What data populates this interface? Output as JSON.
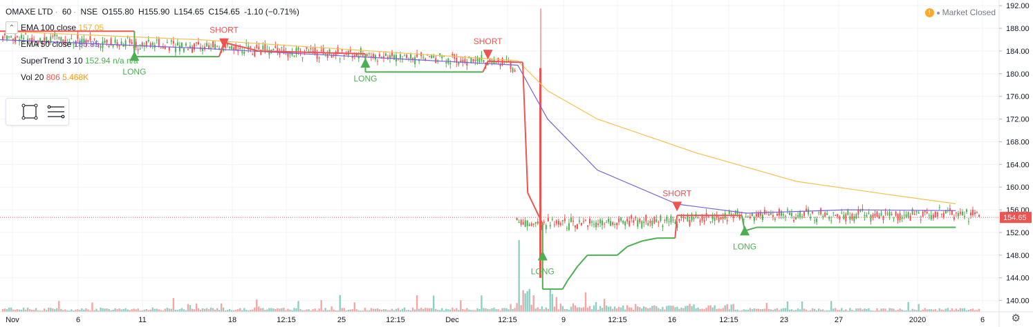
{
  "header": {
    "symbol": "OMAXE LTD",
    "interval": "60",
    "exchange": "NSE",
    "open": "O155.80",
    "high": "H155.90",
    "low": "L154.65",
    "close": "C154.65",
    "change": "-1.10 (−0.71%)"
  },
  "legend": [
    {
      "name": "EMA 100 close",
      "value": "157.05",
      "color": "#ecb22e"
    },
    {
      "name": "EMA 50 close",
      "value": "155.85",
      "color": "#7b61d6"
    },
    {
      "name": "SuperTrend 3 10",
      "value": "152.94",
      "extra": "n/a n/a",
      "color": "#4caf50"
    },
    {
      "name": "Vol 20",
      "value": "806",
      "extra": "5.468K",
      "color": "#ef5350",
      "extra_color": "#ff9800"
    }
  ],
  "market_status": "Market Closed",
  "colors": {
    "up": "#4caf50",
    "down": "#ef5350",
    "ema100": "#f5c04e",
    "ema50": "#7b61d6",
    "vol_up": "#8fd0c3",
    "vol_down": "#f3a7a5",
    "last_price": "#ef5350"
  },
  "chart_data": {
    "type": "candlestick",
    "y_axis": {
      "min": 138,
      "max": 193,
      "ticks": [
        140,
        144,
        148,
        152,
        156,
        160,
        164,
        168,
        172,
        176,
        180,
        184,
        188,
        192
      ]
    },
    "x_labels": [
      "Nov",
      "6",
      "11",
      "18",
      "12:15",
      "25",
      "12:15",
      "Dec",
      "12:15",
      "9",
      "12:15",
      "16",
      "12:15",
      "23",
      "27",
      "2020",
      "6"
    ],
    "last_price": "154.65",
    "segments": [
      {
        "from": 0,
        "to": 0.52,
        "start": 186.5,
        "end": 182.0,
        "vol": 0.45
      },
      {
        "from": 0.52,
        "to": 0.525,
        "start": 182.0,
        "end": 180.0,
        "vol": 1.0
      },
      {
        "from": 0.525,
        "to": 0.545,
        "start": 154.0,
        "end": 153.5,
        "vol": 2.4
      },
      {
        "from": 0.545,
        "to": 0.7,
        "start": 153.5,
        "end": 154.0,
        "vol": 0.7
      },
      {
        "from": 0.7,
        "to": 0.75,
        "start": 154.0,
        "end": 155.0,
        "vol": 0.9
      },
      {
        "from": 0.75,
        "to": 1.0,
        "start": 155.0,
        "end": 155.2,
        "vol": 0.4
      }
    ],
    "signals": [
      {
        "label": "LONG",
        "x": 0.135,
        "price": 183.0,
        "type": "long"
      },
      {
        "label": "SHORT",
        "x": 0.225,
        "price": 185.5,
        "type": "short"
      },
      {
        "label": "LONG",
        "x": 0.367,
        "price": 181.8,
        "type": "long"
      },
      {
        "label": "SHORT",
        "x": 0.49,
        "price": 183.5,
        "type": "short"
      },
      {
        "label": "LONG",
        "x": 0.545,
        "price": 147.8,
        "type": "long"
      },
      {
        "label": "SHORT",
        "x": 0.68,
        "price": 156.7,
        "type": "short"
      },
      {
        "label": "LONG",
        "x": 0.748,
        "price": 152.2,
        "type": "long"
      }
    ],
    "supertrend": [
      {
        "x": 0.0,
        "y": 187.5,
        "trend": "down"
      },
      {
        "x": 0.135,
        "y": 187.5,
        "trend": "down"
      },
      {
        "x": 0.135,
        "y": 183.0,
        "trend": "up"
      },
      {
        "x": 0.22,
        "y": 183.0,
        "trend": "up"
      },
      {
        "x": 0.225,
        "y": 185.5,
        "trend": "down"
      },
      {
        "x": 0.26,
        "y": 184.0,
        "trend": "down"
      },
      {
        "x": 0.367,
        "y": 183.5,
        "trend": "down"
      },
      {
        "x": 0.367,
        "y": 180.3,
        "trend": "up"
      },
      {
        "x": 0.485,
        "y": 180.3,
        "trend": "up"
      },
      {
        "x": 0.49,
        "y": 182.2,
        "trend": "down"
      },
      {
        "x": 0.525,
        "y": 182.0,
        "trend": "down"
      },
      {
        "x": 0.53,
        "y": 159.0,
        "trend": "down"
      },
      {
        "x": 0.545,
        "y": 153.5,
        "trend": "down"
      },
      {
        "x": 0.545,
        "y": 142.0,
        "trend": "up"
      },
      {
        "x": 0.565,
        "y": 142.0,
        "trend": "up"
      },
      {
        "x": 0.57,
        "y": 143.5,
        "trend": "up"
      },
      {
        "x": 0.58,
        "y": 146.0,
        "trend": "up"
      },
      {
        "x": 0.59,
        "y": 148.0,
        "trend": "up"
      },
      {
        "x": 0.62,
        "y": 148.0,
        "trend": "up"
      },
      {
        "x": 0.63,
        "y": 149.5,
        "trend": "up"
      },
      {
        "x": 0.645,
        "y": 150.5,
        "trend": "up"
      },
      {
        "x": 0.66,
        "y": 151.0,
        "trend": "up"
      },
      {
        "x": 0.678,
        "y": 151.0,
        "trend": "up"
      },
      {
        "x": 0.68,
        "y": 155.0,
        "trend": "down"
      },
      {
        "x": 0.745,
        "y": 155.0,
        "trend": "down"
      },
      {
        "x": 0.748,
        "y": 152.3,
        "trend": "up"
      },
      {
        "x": 0.76,
        "y": 152.9,
        "trend": "up"
      },
      {
        "x": 0.96,
        "y": 152.9,
        "trend": "up"
      }
    ],
    "ema100": [
      [
        0,
        187.5
      ],
      [
        0.2,
        186.0
      ],
      [
        0.52,
        182.3
      ],
      [
        0.55,
        177.0
      ],
      [
        0.6,
        172.0
      ],
      [
        0.7,
        166.0
      ],
      [
        0.8,
        161.0
      ],
      [
        0.9,
        158.5
      ],
      [
        0.96,
        157.05
      ]
    ],
    "ema50": [
      [
        0,
        186.0
      ],
      [
        0.2,
        184.5
      ],
      [
        0.52,
        181.5
      ],
      [
        0.55,
        172.0
      ],
      [
        0.6,
        163.0
      ],
      [
        0.68,
        157.0
      ],
      [
        0.75,
        155.4
      ],
      [
        0.85,
        156.0
      ],
      [
        0.96,
        155.85
      ]
    ]
  }
}
